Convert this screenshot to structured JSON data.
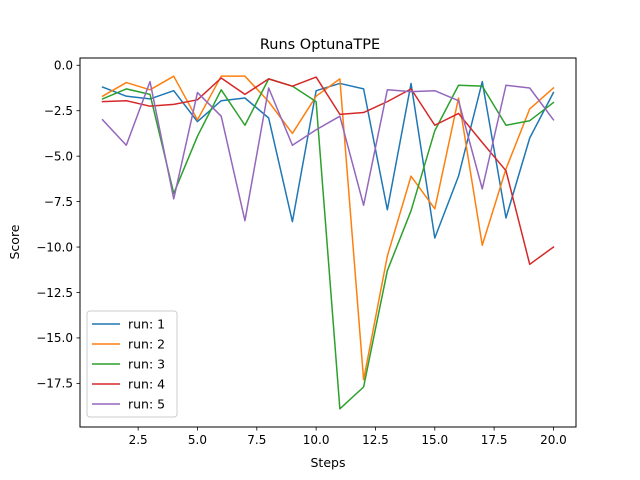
{
  "chart_data": {
    "type": "line",
    "title": "Runs OptunaTPE",
    "xlabel": "Steps",
    "ylabel": "Score",
    "xlim": [
      0.05,
      20.95
    ],
    "ylim": [
      -19.9,
      0.4
    ],
    "xticks": [
      2.5,
      5.0,
      7.5,
      10.0,
      12.5,
      15.0,
      17.5,
      20.0
    ],
    "xtick_labels": [
      "2.5",
      "5.0",
      "7.5",
      "10.0",
      "12.5",
      "15.0",
      "17.5",
      "20.0"
    ],
    "yticks": [
      0.0,
      -2.5,
      -5.0,
      -7.5,
      -10.0,
      -12.5,
      -15.0,
      -17.5
    ],
    "ytick_labels": [
      "0.0",
      "−2.5",
      "−5.0",
      "−7.5",
      "−10.0",
      "−12.5",
      "−15.0",
      "−17.5"
    ],
    "grid": false,
    "legend_position": "lower-left",
    "x": [
      1,
      2,
      3,
      4,
      5,
      6,
      7,
      8,
      9,
      10,
      11,
      12,
      13,
      14,
      15,
      16,
      17,
      18,
      19,
      20
    ],
    "series": [
      {
        "name": "run: 1",
        "color": "#1f77b4",
        "values": [
          -1.2,
          -1.7,
          -1.85,
          -1.4,
          -3.1,
          -1.95,
          -1.8,
          -2.9,
          -8.6,
          -1.4,
          -1.0,
          -1.3,
          -7.95,
          -1.0,
          -9.5,
          -6.1,
          -0.9,
          -8.4,
          -4.0,
          -1.5
        ]
      },
      {
        "name": "run: 2",
        "color": "#ff7f0e",
        "values": [
          -1.7,
          -0.95,
          -1.35,
          -0.6,
          -3.0,
          -0.6,
          -0.6,
          -2.0,
          -3.75,
          -1.7,
          -0.75,
          -17.3,
          -10.5,
          -6.1,
          -7.9,
          -1.8,
          -9.9,
          -5.7,
          -2.4,
          -1.25
        ]
      },
      {
        "name": "run: 3",
        "color": "#2ca02c",
        "values": [
          -1.85,
          -1.3,
          -1.6,
          -7.05,
          -3.9,
          -1.35,
          -3.3,
          -0.75,
          -1.15,
          -2.0,
          -18.9,
          -17.7,
          -11.3,
          -8.0,
          -3.6,
          -1.1,
          -1.15,
          -3.3,
          -3.05,
          -2.05
        ]
      },
      {
        "name": "run: 4",
        "color": "#d62728",
        "values": [
          -2.0,
          -1.95,
          -2.25,
          -2.15,
          -1.9,
          -0.7,
          -1.6,
          -0.75,
          -1.15,
          -0.65,
          -2.7,
          -2.6,
          -2.0,
          -1.3,
          -3.3,
          -2.65,
          -4.25,
          -5.8,
          -10.95,
          -10.0
        ]
      },
      {
        "name": "run: 5",
        "color": "#9467bd",
        "values": [
          -3.0,
          -4.4,
          -0.9,
          -7.35,
          -1.5,
          -2.8,
          -8.55,
          -1.25,
          -4.4,
          -3.55,
          -2.8,
          -7.7,
          -1.35,
          -1.45,
          -1.4,
          -1.95,
          -6.8,
          -1.1,
          -1.25,
          -3.0
        ]
      }
    ]
  }
}
